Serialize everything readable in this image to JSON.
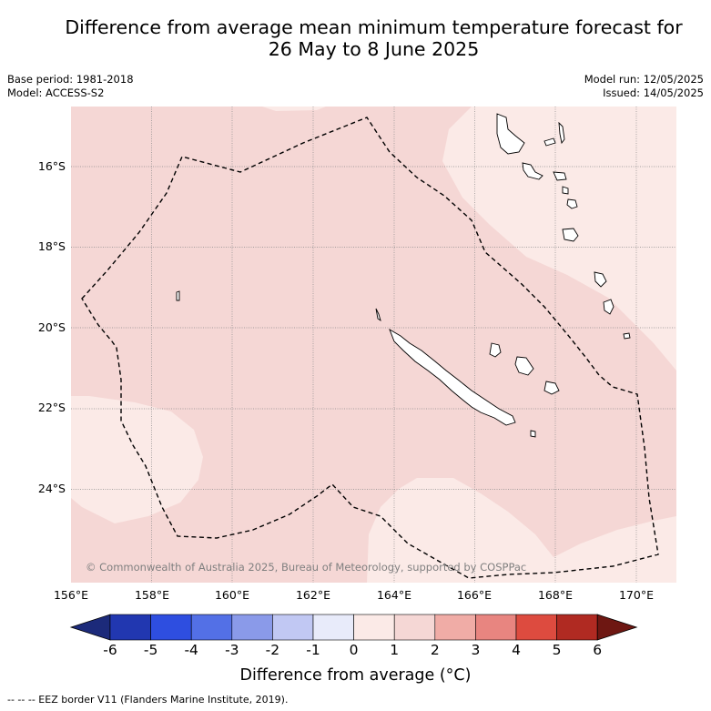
{
  "title_line1": "Difference from average mean minimum temperature forecast for",
  "title_line2": "26 May to 8 June 2025",
  "base_period": "Base period: 1981-2018",
  "model": "Model: ACCESS-S2",
  "model_run": "Model run: 12/05/2025",
  "issued": "Issued: 14/05/2025",
  "copyright": "© Commonwealth of Australia 2025, Bureau of Meteorology, supported by COSPPac",
  "lat_labels": [
    "16°S",
    "18°S",
    "20°S",
    "22°S",
    "24°S"
  ],
  "lon_labels": [
    "156°E",
    "158°E",
    "160°E",
    "162°E",
    "164°E",
    "166°E",
    "168°E",
    "170°E"
  ],
  "colorbar": {
    "ticks": [
      "-6",
      "-5",
      "-4",
      "-3",
      "-2",
      "-1",
      "0",
      "1",
      "2",
      "3",
      "4",
      "5",
      "6"
    ],
    "colors": [
      "#1c2a7a",
      "#2137b0",
      "#2e4ee0",
      "#5370e6",
      "#8a9ae9",
      "#c1c8f3",
      "#e8ebfa",
      "#fbeae7",
      "#f5d7d5",
      "#f0aca6",
      "#e88580",
      "#dd4b3f",
      "#b02a22",
      "#6e1712"
    ],
    "title": "Difference from average (°C)"
  },
  "footer": "--  --  -- EEZ border V11 (Flanders Marine Institute, 2019).",
  "map_colors": {
    "base": "#f5d7d5",
    "light": "#fbeae7"
  }
}
